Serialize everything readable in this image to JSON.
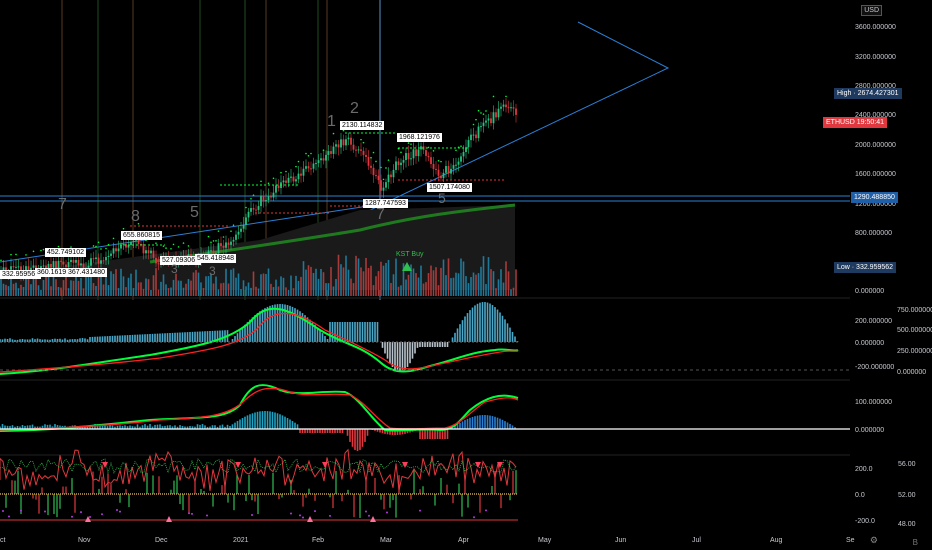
{
  "currency_button": "USD",
  "price_axis": {
    "ticks": [
      "3600.000000",
      "3200.000000",
      "2800.000000",
      "2400.000000",
      "2000.000000",
      "1600.000000",
      "1200.000000",
      "800.000000",
      "0.000000"
    ]
  },
  "price_tags": {
    "high": "High · 2674.427301",
    "symbol": "ETHUSD",
    "symbol_time": "19:50:41",
    "level": "1290.488850",
    "low": "Low · 332.959562"
  },
  "osc1_axis": {
    "left": [
      "200.000000",
      "0.000000",
      "-200.000000"
    ],
    "right": [
      "750.000000",
      "500.000000",
      "250.000000",
      "0.000000"
    ]
  },
  "osc2_axis": {
    "ticks": [
      "100.000000",
      "0.000000"
    ]
  },
  "osc3_axis": {
    "left": [
      "200.0",
      "0.0",
      "-200.0"
    ],
    "right": [
      "56.00",
      "52.00",
      "48.00"
    ]
  },
  "time_axis": [
    "ct",
    "Nov",
    "Dec",
    "2021",
    "Feb",
    "Mar",
    "Apr",
    "May",
    "Jun",
    "Jul",
    "Aug",
    "Se"
  ],
  "annotations": [
    {
      "text": "332.959562"
    },
    {
      "text": "360.161959"
    },
    {
      "text": "367.431480"
    },
    {
      "text": "452.749102"
    },
    {
      "text": "655.860815"
    },
    {
      "text": "527.093060"
    },
    {
      "text": "545.418948"
    },
    {
      "text": "2130.114832"
    },
    {
      "text": "1968.121976"
    },
    {
      "text": "1507.174080"
    },
    {
      "text": "1287.747593"
    }
  ],
  "wave_numbers": [
    "7",
    "8",
    "5",
    "3",
    "3",
    "1",
    "2",
    "7",
    "5"
  ],
  "kst_label": "KST Buy",
  "colors": {
    "bull": "#26c281",
    "bear": "#e0383e",
    "trend_blue": "#2a7fd4",
    "macd_green": "#00ff3a",
    "macd_red": "#ff2020"
  }
}
